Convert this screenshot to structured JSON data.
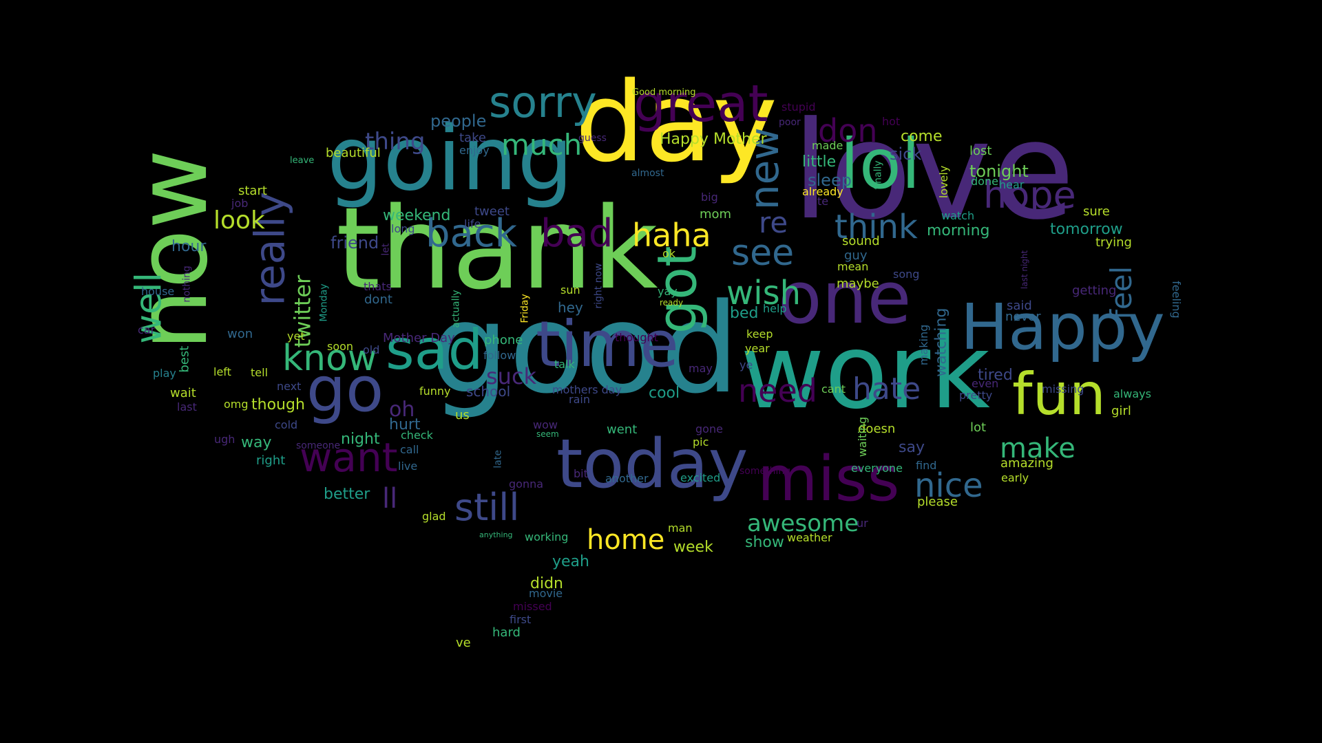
{
  "background": "#000000",
  "palette": {
    "yellow": "#fde725",
    "lime": "#b5de2b",
    "green": "#6ece58",
    "emerald": "#35b779",
    "teal": "#1f9e89",
    "cyan": "#26828e",
    "blue": "#31688e",
    "indigo": "#3e4989",
    "violet": "#482878",
    "purple": "#440154"
  },
  "words": [
    {
      "text": "love",
      "size": 196,
      "color": "violet",
      "rotation": 0
    },
    {
      "text": "good",
      "size": 180,
      "color": "cyan",
      "rotation": 0
    },
    {
      "text": "thank",
      "size": 164,
      "color": "green",
      "rotation": 0
    },
    {
      "text": "day",
      "size": 160,
      "color": "yellow",
      "rotation": 0
    },
    {
      "text": "work",
      "size": 150,
      "color": "teal",
      "rotation": 0
    },
    {
      "text": "now",
      "size": 142,
      "color": "green",
      "rotation": -90
    },
    {
      "text": "going",
      "size": 128,
      "color": "cyan",
      "rotation": 0
    },
    {
      "text": "one",
      "size": 104,
      "color": "violet",
      "rotation": 0
    },
    {
      "text": "lol",
      "size": 100,
      "color": "emerald",
      "rotation": 0
    },
    {
      "text": "today",
      "size": 98,
      "color": "indigo",
      "rotation": 0
    },
    {
      "text": "time",
      "size": 92,
      "color": "indigo",
      "rotation": 0
    },
    {
      "text": "Happy",
      "size": 92,
      "color": "blue",
      "rotation": 0
    },
    {
      "text": "go",
      "size": 90,
      "color": "indigo",
      "rotation": 0
    },
    {
      "text": "miss",
      "size": 90,
      "color": "purple",
      "rotation": 0
    },
    {
      "text": "fun",
      "size": 84,
      "color": "lime",
      "rotation": 0
    },
    {
      "text": "sad",
      "size": 80,
      "color": "teal",
      "rotation": 0
    },
    {
      "text": "got",
      "size": 78,
      "color": "emerald",
      "rotation": -90
    },
    {
      "text": "great",
      "size": 74,
      "color": "purple",
      "rotation": 0
    },
    {
      "text": "sorry",
      "size": 62,
      "color": "cyan",
      "rotation": 0
    },
    {
      "text": "really",
      "size": 60,
      "color": "indigo",
      "rotation": -90
    },
    {
      "text": "new",
      "size": 58,
      "color": "blue",
      "rotation": -90
    },
    {
      "text": "want",
      "size": 58,
      "color": "purple",
      "rotation": 0
    },
    {
      "text": "back",
      "size": 56,
      "color": "blue",
      "rotation": 0
    },
    {
      "text": "bad",
      "size": 56,
      "color": "purple",
      "rotation": 0
    },
    {
      "text": "still",
      "size": 54,
      "color": "indigo",
      "rotation": 0
    },
    {
      "text": "hope",
      "size": 54,
      "color": "violet",
      "rotation": 0
    },
    {
      "text": "know",
      "size": 52,
      "color": "emerald",
      "rotation": 0
    },
    {
      "text": "well",
      "size": 52,
      "color": "emerald",
      "rotation": -90
    },
    {
      "text": "see",
      "size": 52,
      "color": "blue",
      "rotation": 0
    },
    {
      "text": "think",
      "size": 48,
      "color": "blue",
      "rotation": 0
    },
    {
      "text": "nice",
      "size": 48,
      "color": "blue",
      "rotation": 0
    },
    {
      "text": "wish",
      "size": 48,
      "color": "emerald",
      "rotation": 0
    },
    {
      "text": "don",
      "size": 46,
      "color": "purple",
      "rotation": 0
    },
    {
      "text": "haha",
      "size": 46,
      "color": "yellow",
      "rotation": 0
    },
    {
      "text": "need",
      "size": 46,
      "color": "purple",
      "rotation": 0
    },
    {
      "text": "hate",
      "size": 44,
      "color": "indigo",
      "rotation": 0
    },
    {
      "text": "much",
      "size": 42,
      "color": "emerald",
      "rotation": 0
    },
    {
      "text": "re",
      "size": 42,
      "color": "indigo",
      "rotation": 0
    },
    {
      "text": "feel",
      "size": 42,
      "color": "blue",
      "rotation": -90
    },
    {
      "text": "home",
      "size": 40,
      "color": "yellow",
      "rotation": 0
    },
    {
      "text": "make",
      "size": 40,
      "color": "emerald",
      "rotation": 0
    },
    {
      "text": "ll",
      "size": 40,
      "color": "violet",
      "rotation": 0
    },
    {
      "text": "look",
      "size": 36,
      "color": "lime",
      "rotation": 0
    },
    {
      "text": "awesome",
      "size": 34,
      "color": "emerald",
      "rotation": 0
    },
    {
      "text": "thing",
      "size": 34,
      "color": "indigo",
      "rotation": 0
    },
    {
      "text": "twitter",
      "size": 32,
      "color": "green",
      "rotation": -90
    },
    {
      "text": "suck",
      "size": 32,
      "color": "violet",
      "rotation": 0
    },
    {
      "text": "oh",
      "size": 30,
      "color": "violet",
      "rotation": 0
    },
    {
      "text": "people",
      "size": 24,
      "color": "blue",
      "rotation": 0
    },
    {
      "text": "Happy Mother",
      "size": 22,
      "color": "lime",
      "rotation": 0
    },
    {
      "text": "tonight",
      "size": 24,
      "color": "green",
      "rotation": 0
    },
    {
      "text": "sick",
      "size": 24,
      "color": "indigo",
      "rotation": 0
    },
    {
      "text": "come",
      "size": 22,
      "color": "lime",
      "rotation": 0
    },
    {
      "text": "little",
      "size": 22,
      "color": "emerald",
      "rotation": 0
    },
    {
      "text": "sleep",
      "size": 24,
      "color": "blue",
      "rotation": 0
    },
    {
      "text": "morning",
      "size": 22,
      "color": "emerald",
      "rotation": 0
    },
    {
      "text": "tomorrow",
      "size": 22,
      "color": "teal",
      "rotation": 0
    },
    {
      "text": "weekend",
      "size": 22,
      "color": "emerald",
      "rotation": 0
    },
    {
      "text": "friend",
      "size": 24,
      "color": "indigo",
      "rotation": 0
    },
    {
      "text": "hour",
      "size": 22,
      "color": "blue",
      "rotation": 0
    },
    {
      "text": "watching",
      "size": 22,
      "color": "blue",
      "rotation": -90
    },
    {
      "text": "tired",
      "size": 22,
      "color": "indigo",
      "rotation": 0
    },
    {
      "text": "cool",
      "size": 22,
      "color": "teal",
      "rotation": 0
    },
    {
      "text": "night",
      "size": 22,
      "color": "emerald",
      "rotation": 0
    },
    {
      "text": "though",
      "size": 22,
      "color": "lime",
      "rotation": 0
    },
    {
      "text": "hurt",
      "size": 22,
      "color": "blue",
      "rotation": 0
    },
    {
      "text": "way",
      "size": 22,
      "color": "emerald",
      "rotation": 0
    },
    {
      "text": "better",
      "size": 22,
      "color": "teal",
      "rotation": 0
    },
    {
      "text": "say",
      "size": 22,
      "color": "indigo",
      "rotation": 0
    },
    {
      "text": "amazing",
      "size": 18,
      "color": "lime",
      "rotation": 0
    },
    {
      "text": "yeah",
      "size": 22,
      "color": "teal",
      "rotation": 0
    },
    {
      "text": "didn",
      "size": 22,
      "color": "lime",
      "rotation": 0
    },
    {
      "text": "week",
      "size": 22,
      "color": "lime",
      "rotation": 0
    },
    {
      "text": "show",
      "size": 22,
      "color": "emerald",
      "rotation": 0
    },
    {
      "text": "bed",
      "size": 22,
      "color": "teal",
      "rotation": 0
    },
    {
      "text": "hey",
      "size": 20,
      "color": "blue",
      "rotation": 0
    },
    {
      "text": "dont",
      "size": 18,
      "color": "blue",
      "rotation": 0
    },
    {
      "text": "school",
      "size": 20,
      "color": "indigo",
      "rotation": 0
    },
    {
      "text": "phone",
      "size": 18,
      "color": "emerald",
      "rotation": 0
    },
    {
      "text": "Mother Day",
      "size": 18,
      "color": "violet",
      "rotation": 0
    },
    {
      "text": "mothers day",
      "size": 16,
      "color": "indigo",
      "rotation": 0
    },
    {
      "text": "sure",
      "size": 18,
      "color": "lime",
      "rotation": 0
    },
    {
      "text": "trying",
      "size": 18,
      "color": "lime",
      "rotation": 0
    },
    {
      "text": "getting",
      "size": 18,
      "color": "violet",
      "rotation": 0
    },
    {
      "text": "feeling",
      "size": 16,
      "color": "blue",
      "rotation": 90
    },
    {
      "text": "said",
      "size": 18,
      "color": "indigo",
      "rotation": 0
    },
    {
      "text": "never",
      "size": 18,
      "color": "blue",
      "rotation": 0
    },
    {
      "text": "always",
      "size": 16,
      "color": "emerald",
      "rotation": 0
    },
    {
      "text": "missing",
      "size": 16,
      "color": "indigo",
      "rotation": 0
    },
    {
      "text": "girl",
      "size": 18,
      "color": "lime",
      "rotation": 0
    },
    {
      "text": "lot",
      "size": 18,
      "color": "green",
      "rotation": 0
    },
    {
      "text": "early",
      "size": 16,
      "color": "lime",
      "rotation": 0
    },
    {
      "text": "please",
      "size": 18,
      "color": "lime",
      "rotation": 0
    },
    {
      "text": "doesn",
      "size": 18,
      "color": "lime",
      "rotation": 0
    },
    {
      "text": "find",
      "size": 16,
      "color": "blue",
      "rotation": 0
    },
    {
      "text": "everyone",
      "size": 16,
      "color": "emerald",
      "rotation": 0
    },
    {
      "text": "pretty",
      "size": 16,
      "color": "indigo",
      "rotation": 0
    },
    {
      "text": "even",
      "size": 16,
      "color": "violet",
      "rotation": 0
    },
    {
      "text": "cant",
      "size": 16,
      "color": "green",
      "rotation": 0
    },
    {
      "text": "waiting",
      "size": 16,
      "color": "green",
      "rotation": -90
    },
    {
      "text": "making",
      "size": 16,
      "color": "blue",
      "rotation": -90
    },
    {
      "text": "lost",
      "size": 18,
      "color": "green",
      "rotation": 0
    },
    {
      "text": "done",
      "size": 16,
      "color": "emerald",
      "rotation": 0
    },
    {
      "text": "hear",
      "size": 16,
      "color": "teal",
      "rotation": 0
    },
    {
      "text": "lovely",
      "size": 16,
      "color": "lime",
      "rotation": -90
    },
    {
      "text": "watch",
      "size": 16,
      "color": "teal",
      "rotation": 0
    },
    {
      "text": "finally",
      "size": 14,
      "color": "emerald",
      "rotation": -90
    },
    {
      "text": "made",
      "size": 16,
      "color": "green",
      "rotation": 0
    },
    {
      "text": "already",
      "size": 16,
      "color": "yellow",
      "rotation": 0
    },
    {
      "text": "cute",
      "size": 16,
      "color": "violet",
      "rotation": 0
    },
    {
      "text": "sound",
      "size": 18,
      "color": "lime",
      "rotation": 0
    },
    {
      "text": "guy",
      "size": 18,
      "color": "blue",
      "rotation": 0
    },
    {
      "text": "mean",
      "size": 16,
      "color": "lime",
      "rotation": 0
    },
    {
      "text": "maybe",
      "size": 18,
      "color": "lime",
      "rotation": 0
    },
    {
      "text": "song",
      "size": 16,
      "color": "indigo",
      "rotation": 0
    },
    {
      "text": "stupid",
      "size": 16,
      "color": "purple",
      "rotation": 0
    },
    {
      "text": "poor",
      "size": 14,
      "color": "violet",
      "rotation": 0
    },
    {
      "text": "hot",
      "size": 16,
      "color": "purple",
      "rotation": 0
    },
    {
      "text": "Good morning",
      "size": 13,
      "color": "lime",
      "rotation": 0
    },
    {
      "text": "beautiful",
      "size": 18,
      "color": "lime",
      "rotation": 0
    },
    {
      "text": "leave",
      "size": 13,
      "color": "emerald",
      "rotation": 0
    },
    {
      "text": "start",
      "size": 18,
      "color": "lime",
      "rotation": 0
    },
    {
      "text": "job",
      "size": 16,
      "color": "violet",
      "rotation": 0
    },
    {
      "text": "enjoy",
      "size": 16,
      "color": "blue",
      "rotation": 0
    },
    {
      "text": "take",
      "size": 18,
      "color": "indigo",
      "rotation": 0
    },
    {
      "text": "guess",
      "size": 14,
      "color": "violet",
      "rotation": 0
    },
    {
      "text": "almost",
      "size": 14,
      "color": "blue",
      "rotation": 0
    },
    {
      "text": "big",
      "size": 16,
      "color": "violet",
      "rotation": 0
    },
    {
      "text": "mom",
      "size": 18,
      "color": "green",
      "rotation": 0
    },
    {
      "text": "tweet",
      "size": 18,
      "color": "indigo",
      "rotation": 0
    },
    {
      "text": "life",
      "size": 16,
      "color": "indigo",
      "rotation": 0
    },
    {
      "text": "long",
      "size": 16,
      "color": "indigo",
      "rotation": 0
    },
    {
      "text": "let",
      "size": 14,
      "color": "violet",
      "rotation": -90
    },
    {
      "text": "ok",
      "size": 16,
      "color": "lime",
      "rotation": 0
    },
    {
      "text": "right now",
      "size": 14,
      "color": "indigo",
      "rotation": -90
    },
    {
      "text": "yay",
      "size": 16,
      "color": "emerald",
      "rotation": 0
    },
    {
      "text": "ready",
      "size": 12,
      "color": "lime",
      "rotation": 0
    },
    {
      "text": "sun",
      "size": 16,
      "color": "lime",
      "rotation": 0
    },
    {
      "text": "thats",
      "size": 16,
      "color": "violet",
      "rotation": 0
    },
    {
      "text": "Monday",
      "size": 14,
      "color": "teal",
      "rotation": -90
    },
    {
      "text": "actually",
      "size": 14,
      "color": "emerald",
      "rotation": -90
    },
    {
      "text": "Friday",
      "size": 14,
      "color": "yellow",
      "rotation": -90
    },
    {
      "text": "help",
      "size": 16,
      "color": "teal",
      "rotation": 0
    },
    {
      "text": "keep",
      "size": 16,
      "color": "lime",
      "rotation": 0
    },
    {
      "text": "year",
      "size": 16,
      "color": "lime",
      "rotation": 0
    },
    {
      "text": "ye",
      "size": 16,
      "color": "indigo",
      "rotation": 0
    },
    {
      "text": "may",
      "size": 16,
      "color": "violet",
      "rotation": 0
    },
    {
      "text": "thought",
      "size": 16,
      "color": "purple",
      "rotation": 0
    },
    {
      "text": "talk",
      "size": 16,
      "color": "emerald",
      "rotation": 0
    },
    {
      "text": "follow",
      "size": 16,
      "color": "blue",
      "rotation": 0
    },
    {
      "text": "old",
      "size": 16,
      "color": "indigo",
      "rotation": 0
    },
    {
      "text": "soon",
      "size": 16,
      "color": "lime",
      "rotation": 0
    },
    {
      "text": "yet",
      "size": 16,
      "color": "lime",
      "rotation": 0
    },
    {
      "text": "won",
      "size": 18,
      "color": "blue",
      "rotation": 0
    },
    {
      "text": "house",
      "size": 16,
      "color": "blue",
      "rotation": 0
    },
    {
      "text": "nothing",
      "size": 14,
      "color": "violet",
      "rotation": -90
    },
    {
      "text": "car",
      "size": 16,
      "color": "violet",
      "rotation": 0
    },
    {
      "text": "best",
      "size": 18,
      "color": "emerald",
      "rotation": -90
    },
    {
      "text": "play",
      "size": 16,
      "color": "cyan",
      "rotation": 0
    },
    {
      "text": "left",
      "size": 16,
      "color": "lime",
      "rotation": 0
    },
    {
      "text": "tell",
      "size": 16,
      "color": "lime",
      "rotation": 0
    },
    {
      "text": "next",
      "size": 16,
      "color": "indigo",
      "rotation": 0
    },
    {
      "text": "wait",
      "size": 18,
      "color": "lime",
      "rotation": 0
    },
    {
      "text": "omg",
      "size": 16,
      "color": "lime",
      "rotation": 0
    },
    {
      "text": "last",
      "size": 16,
      "color": "violet",
      "rotation": 0
    },
    {
      "text": "cold",
      "size": 16,
      "color": "indigo",
      "rotation": 0
    },
    {
      "text": "ugh",
      "size": 16,
      "color": "violet",
      "rotation": 0
    },
    {
      "text": "someone",
      "size": 14,
      "color": "violet",
      "rotation": 0
    },
    {
      "text": "right",
      "size": 18,
      "color": "teal",
      "rotation": 0
    },
    {
      "text": "funny",
      "size": 16,
      "color": "lime",
      "rotation": 0
    },
    {
      "text": "us",
      "size": 18,
      "color": "lime",
      "rotation": 0
    },
    {
      "text": "wow",
      "size": 16,
      "color": "violet",
      "rotation": 0
    },
    {
      "text": "seem",
      "size": 12,
      "color": "emerald",
      "rotation": 0
    },
    {
      "text": "check",
      "size": 16,
      "color": "emerald",
      "rotation": 0
    },
    {
      "text": "call",
      "size": 16,
      "color": "blue",
      "rotation": 0
    },
    {
      "text": "live",
      "size": 16,
      "color": "blue",
      "rotation": 0
    },
    {
      "text": "late",
      "size": 14,
      "color": "blue",
      "rotation": -90
    },
    {
      "text": "rain",
      "size": 16,
      "color": "indigo",
      "rotation": 0
    },
    {
      "text": "went",
      "size": 18,
      "color": "emerald",
      "rotation": 0
    },
    {
      "text": "gone",
      "size": 16,
      "color": "violet",
      "rotation": 0
    },
    {
      "text": "pic",
      "size": 16,
      "color": "lime",
      "rotation": 0
    },
    {
      "text": "bit",
      "size": 16,
      "color": "violet",
      "rotation": 0
    },
    {
      "text": "another",
      "size": 16,
      "color": "blue",
      "rotation": 0
    },
    {
      "text": "excited",
      "size": 16,
      "color": "teal",
      "rotation": 0
    },
    {
      "text": "something",
      "size": 14,
      "color": "purple",
      "rotation": 0
    },
    {
      "text": "gonna",
      "size": 16,
      "color": "violet",
      "rotation": 0
    },
    {
      "text": "glad",
      "size": 16,
      "color": "lime",
      "rotation": 0
    },
    {
      "text": "anything",
      "size": 11,
      "color": "emerald",
      "rotation": 0
    },
    {
      "text": "working",
      "size": 16,
      "color": "emerald",
      "rotation": 0
    },
    {
      "text": "man",
      "size": 16,
      "color": "lime",
      "rotation": 0
    },
    {
      "text": "weather",
      "size": 16,
      "color": "lime",
      "rotation": 0
    },
    {
      "text": "ur",
      "size": 16,
      "color": "violet",
      "rotation": 0
    },
    {
      "text": "last night",
      "size": 12,
      "color": "violet",
      "rotation": -90
    },
    {
      "text": "movie",
      "size": 16,
      "color": "blue",
      "rotation": 0
    },
    {
      "text": "missed",
      "size": 16,
      "color": "purple",
      "rotation": 0
    },
    {
      "text": "first",
      "size": 16,
      "color": "indigo",
      "rotation": 0
    },
    {
      "text": "hard",
      "size": 18,
      "color": "emerald",
      "rotation": 0
    },
    {
      "text": "ve",
      "size": 18,
      "color": "lime",
      "rotation": 0
    }
  ]
}
